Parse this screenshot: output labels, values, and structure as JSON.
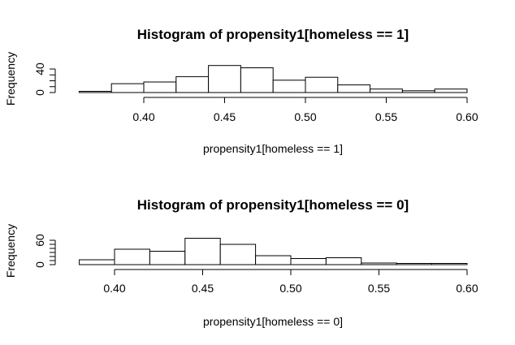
{
  "chart_data": [
    {
      "type": "bar",
      "title": "Histogram of propensity1[homeless == 1]",
      "xlabel": "propensity1[homeless == 1]",
      "ylabel": "Frequency",
      "xlim": [
        0.36,
        0.6
      ],
      "ylim": [
        0,
        45
      ],
      "x_ticks": [
        "0.40",
        "0.45",
        "0.50",
        "0.55",
        "0.60"
      ],
      "y_ticks": [
        "0",
        "40"
      ],
      "bins": [
        {
          "start": 0.36,
          "end": 0.38,
          "count": 2
        },
        {
          "start": 0.38,
          "end": 0.4,
          "count": 15
        },
        {
          "start": 0.4,
          "end": 0.42,
          "count": 18
        },
        {
          "start": 0.42,
          "end": 0.44,
          "count": 27
        },
        {
          "start": 0.44,
          "end": 0.46,
          "count": 46
        },
        {
          "start": 0.46,
          "end": 0.48,
          "count": 42
        },
        {
          "start": 0.48,
          "end": 0.5,
          "count": 21
        },
        {
          "start": 0.5,
          "end": 0.52,
          "count": 26
        },
        {
          "start": 0.52,
          "end": 0.54,
          "count": 13
        },
        {
          "start": 0.54,
          "end": 0.56,
          "count": 6
        },
        {
          "start": 0.56,
          "end": 0.58,
          "count": 3
        },
        {
          "start": 0.58,
          "end": 0.6,
          "count": 6
        }
      ]
    },
    {
      "type": "bar",
      "title": "Histogram of propensity1[homeless == 0]",
      "xlabel": "propensity1[homeless == 0]",
      "ylabel": "Frequency",
      "xlim": [
        0.38,
        0.6
      ],
      "ylim": [
        0,
        70
      ],
      "x_ticks": [
        "0.40",
        "0.45",
        "0.50",
        "0.55",
        "0.60"
      ],
      "y_ticks": [
        "0",
        "60"
      ],
      "bins": [
        {
          "start": 0.38,
          "end": 0.4,
          "count": 12
        },
        {
          "start": 0.4,
          "end": 0.42,
          "count": 38
        },
        {
          "start": 0.42,
          "end": 0.44,
          "count": 33
        },
        {
          "start": 0.44,
          "end": 0.46,
          "count": 65
        },
        {
          "start": 0.46,
          "end": 0.48,
          "count": 50
        },
        {
          "start": 0.48,
          "end": 0.5,
          "count": 22
        },
        {
          "start": 0.5,
          "end": 0.52,
          "count": 15
        },
        {
          "start": 0.52,
          "end": 0.54,
          "count": 17
        },
        {
          "start": 0.54,
          "end": 0.56,
          "count": 4
        },
        {
          "start": 0.56,
          "end": 0.58,
          "count": 3
        },
        {
          "start": 0.58,
          "end": 0.6,
          "count": 3
        }
      ]
    }
  ]
}
